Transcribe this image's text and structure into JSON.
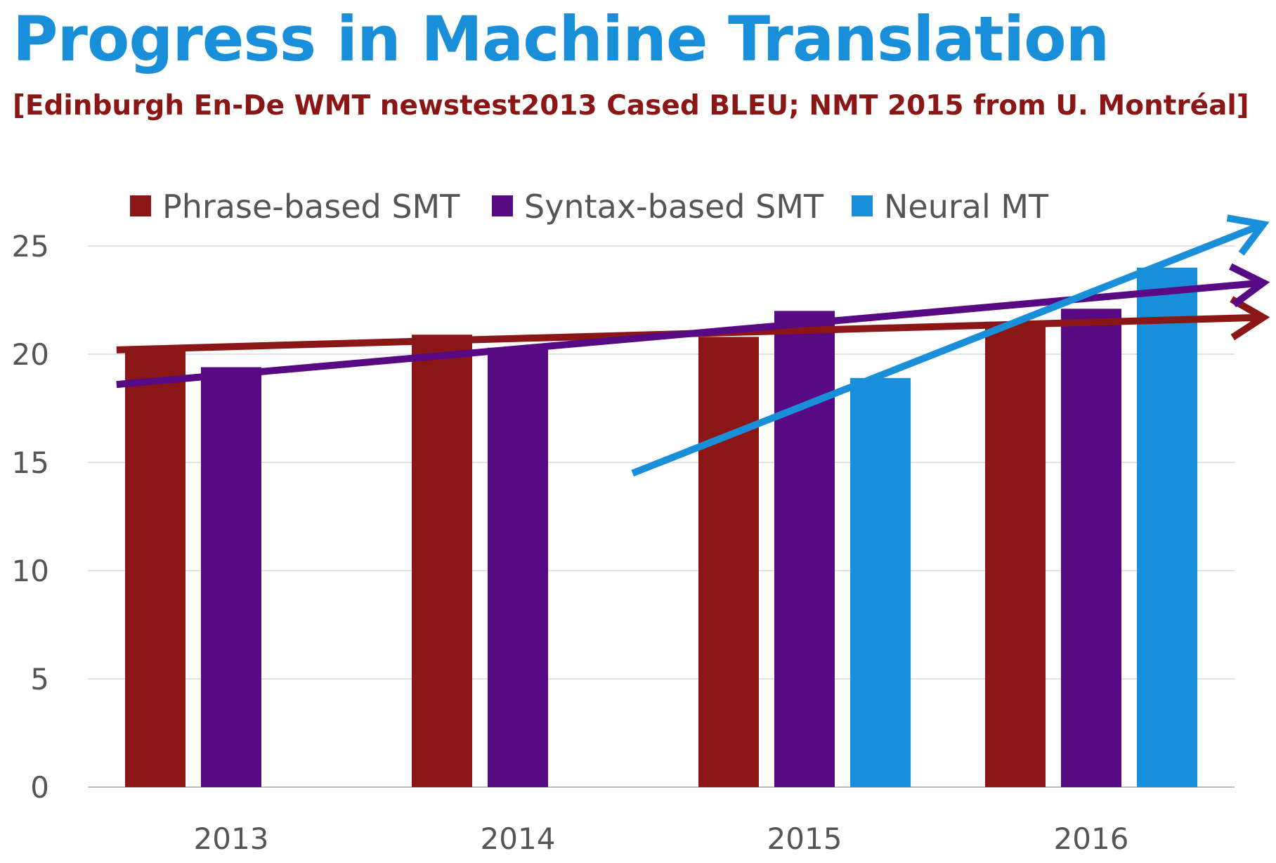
{
  "chart_data": {
    "type": "bar",
    "title": "Progress in Machine Translation",
    "subtitle": "[Edinburgh En-De WMT newstest2013 Cased BLEU; NMT 2015 from U. Montréal]",
    "xlabel": "",
    "ylabel": "",
    "categories": [
      "2013",
      "2014",
      "2015",
      "2016"
    ],
    "ylim": [
      0,
      25
    ],
    "yticks": [
      0,
      5,
      10,
      15,
      20,
      25
    ],
    "grid": true,
    "legend_position": "top",
    "series": [
      {
        "name": "Phrase-based SMT",
        "color": "#8b1616",
        "values": [
          20.3,
          20.9,
          20.8,
          21.5
        ]
      },
      {
        "name": "Syntax-based SMT",
        "color": "#580a85",
        "values": [
          19.4,
          20.3,
          22.0,
          22.1
        ]
      },
      {
        "name": "Neural MT",
        "color": "#1a8fd9",
        "values": [
          null,
          null,
          18.9,
          24.0
        ]
      }
    ],
    "trend_arrows": [
      {
        "series": "Phrase-based SMT",
        "color": "#8b1616",
        "from": [
          2012.6,
          20.2
        ],
        "to": [
          2016.6,
          21.7
        ]
      },
      {
        "series": "Syntax-based SMT",
        "color": "#580a85",
        "from": [
          2012.6,
          18.6
        ],
        "to": [
          2016.6,
          23.3
        ]
      },
      {
        "series": "Neural MT",
        "color": "#1a8fd9",
        "from": [
          2014.4,
          14.5
        ],
        "to": [
          2016.6,
          26.0
        ]
      }
    ]
  }
}
